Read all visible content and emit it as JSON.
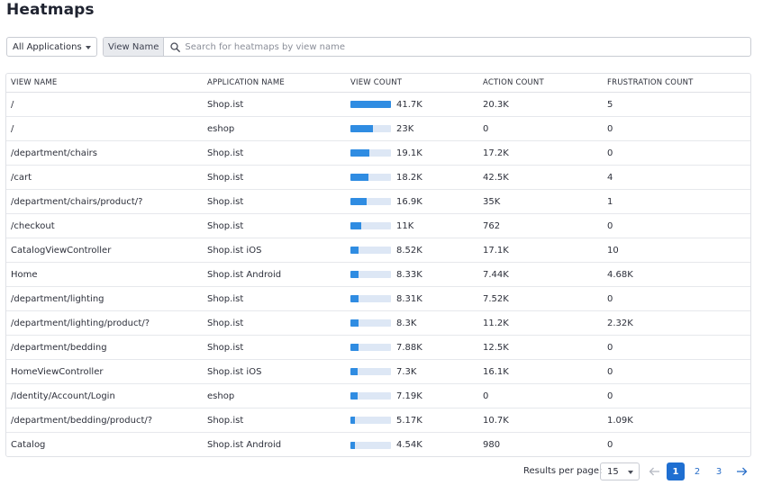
{
  "page": {
    "title": "Heatmaps"
  },
  "filters": {
    "application_select": "All Applications",
    "search_tag": "View Name",
    "search_placeholder": "Search for heatmaps by view name",
    "search_value": ""
  },
  "table": {
    "headers": {
      "view_name": "VIEW NAME",
      "application_name": "APPLICATION NAME",
      "view_count": "VIEW COUNT",
      "action_count": "ACTION COUNT",
      "frustration_count": "FRUSTRATION COUNT"
    },
    "rows": [
      {
        "view_name": "/",
        "application_name": "Shop.ist",
        "view_count": "41.7K",
        "view_count_fraction": 1.0,
        "action_count": "20.3K",
        "frustration_count": "5"
      },
      {
        "view_name": "/",
        "application_name": "eshop",
        "view_count": "23K",
        "view_count_fraction": 0.55,
        "action_count": "0",
        "frustration_count": "0"
      },
      {
        "view_name": "/department/chairs",
        "application_name": "Shop.ist",
        "view_count": "19.1K",
        "view_count_fraction": 0.46,
        "action_count": "17.2K",
        "frustration_count": "0"
      },
      {
        "view_name": "/cart",
        "application_name": "Shop.ist",
        "view_count": "18.2K",
        "view_count_fraction": 0.44,
        "action_count": "42.5K",
        "frustration_count": "4"
      },
      {
        "view_name": "/department/chairs/product/?",
        "application_name": "Shop.ist",
        "view_count": "16.9K",
        "view_count_fraction": 0.41,
        "action_count": "35K",
        "frustration_count": "1"
      },
      {
        "view_name": "/checkout",
        "application_name": "Shop.ist",
        "view_count": "11K",
        "view_count_fraction": 0.26,
        "action_count": "762",
        "frustration_count": "0"
      },
      {
        "view_name": "CatalogViewController",
        "application_name": "Shop.ist iOS",
        "view_count": "8.52K",
        "view_count_fraction": 0.2,
        "action_count": "17.1K",
        "frustration_count": "10"
      },
      {
        "view_name": "Home",
        "application_name": "Shop.ist Android",
        "view_count": "8.33K",
        "view_count_fraction": 0.2,
        "action_count": "7.44K",
        "frustration_count": "4.68K"
      },
      {
        "view_name": "/department/lighting",
        "application_name": "Shop.ist",
        "view_count": "8.31K",
        "view_count_fraction": 0.2,
        "action_count": "7.52K",
        "frustration_count": "0"
      },
      {
        "view_name": "/department/lighting/product/?",
        "application_name": "Shop.ist",
        "view_count": "8.3K",
        "view_count_fraction": 0.2,
        "action_count": "11.2K",
        "frustration_count": "2.32K"
      },
      {
        "view_name": "/department/bedding",
        "application_name": "Shop.ist",
        "view_count": "7.88K",
        "view_count_fraction": 0.19,
        "action_count": "12.5K",
        "frustration_count": "0"
      },
      {
        "view_name": "HomeViewController",
        "application_name": "Shop.ist iOS",
        "view_count": "7.3K",
        "view_count_fraction": 0.18,
        "action_count": "16.1K",
        "frustration_count": "0"
      },
      {
        "view_name": "/Identity/Account/Login",
        "application_name": "eshop",
        "view_count": "7.19K",
        "view_count_fraction": 0.17,
        "action_count": "0",
        "frustration_count": "0"
      },
      {
        "view_name": "/department/bedding/product/?",
        "application_name": "Shop.ist",
        "view_count": "5.17K",
        "view_count_fraction": 0.12,
        "action_count": "10.7K",
        "frustration_count": "1.09K"
      },
      {
        "view_name": "Catalog",
        "application_name": "Shop.ist Android",
        "view_count": "4.54K",
        "view_count_fraction": 0.11,
        "action_count": "980",
        "frustration_count": "0"
      }
    ]
  },
  "pagination": {
    "results_per_page_label": "Results per page:",
    "results_per_page_value": "15",
    "pages": [
      "1",
      "2",
      "3"
    ],
    "current_page": "1"
  },
  "colors": {
    "bar_fill": "#2f8ce2",
    "bar_track": "#dde7f5",
    "active_page": "#1f6fd1"
  }
}
